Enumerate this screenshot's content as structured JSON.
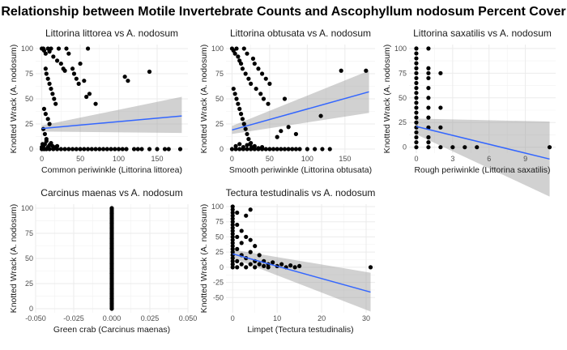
{
  "title": "Relationship between Motile Invertebrate Counts and Ascophyllum nodosum Percent Cover",
  "chart_data": [
    {
      "type": "scatter",
      "title": "Littorina littorea vs A. nodosum",
      "xlabel": "Common periwinkle (Littorina littorea)",
      "ylabel": "Knotted Wrack (A. nodosum)",
      "xlim": [
        -8,
        190
      ],
      "ylim": [
        -4,
        104
      ],
      "xticks": [
        0,
        50,
        100,
        150
      ],
      "yticks": [
        0,
        25,
        50,
        75,
        100
      ],
      "points": [
        [
          0,
          100
        ],
        [
          2,
          100
        ],
        [
          3,
          98
        ],
        [
          5,
          95
        ],
        [
          8,
          100
        ],
        [
          10,
          97
        ],
        [
          12,
          100
        ],
        [
          15,
          92
        ],
        [
          20,
          88
        ],
        [
          22,
          100
        ],
        [
          25,
          85
        ],
        [
          28,
          80
        ],
        [
          30,
          78
        ],
        [
          32,
          100
        ],
        [
          35,
          95
        ],
        [
          40,
          80
        ],
        [
          42,
          75
        ],
        [
          45,
          70
        ],
        [
          48,
          65
        ],
        [
          50,
          85
        ],
        [
          55,
          68
        ],
        [
          58,
          52
        ],
        [
          60,
          100
        ],
        [
          62,
          55
        ],
        [
          70,
          45
        ],
        [
          5,
          80
        ],
        [
          6,
          75
        ],
        [
          8,
          70
        ],
        [
          10,
          65
        ],
        [
          12,
          60
        ],
        [
          14,
          55
        ],
        [
          16,
          50
        ],
        [
          18,
          45
        ],
        [
          3,
          40
        ],
        [
          5,
          35
        ],
        [
          8,
          30
        ],
        [
          10,
          25
        ],
        [
          2,
          20
        ],
        [
          4,
          15
        ],
        [
          6,
          10
        ],
        [
          1,
          5
        ],
        [
          0,
          0
        ],
        [
          3,
          0
        ],
        [
          6,
          0
        ],
        [
          10,
          0
        ],
        [
          15,
          0
        ],
        [
          20,
          0
        ],
        [
          25,
          0
        ],
        [
          30,
          0
        ],
        [
          35,
          0
        ],
        [
          40,
          0
        ],
        [
          45,
          0
        ],
        [
          50,
          0
        ],
        [
          55,
          0
        ],
        [
          60,
          0
        ],
        [
          65,
          0
        ],
        [
          70,
          0
        ],
        [
          75,
          0
        ],
        [
          80,
          0
        ],
        [
          85,
          0
        ],
        [
          90,
          0
        ],
        [
          95,
          0
        ],
        [
          100,
          0
        ],
        [
          105,
          0
        ],
        [
          110,
          0
        ],
        [
          120,
          0
        ],
        [
          125,
          0
        ],
        [
          130,
          0
        ],
        [
          140,
          0
        ],
        [
          150,
          0
        ],
        [
          160,
          0
        ],
        [
          165,
          0
        ],
        [
          180,
          0
        ],
        [
          0,
          2
        ],
        [
          2,
          3
        ],
        [
          4,
          5
        ],
        [
          6,
          8
        ],
        [
          8,
          2
        ],
        [
          10,
          4
        ],
        [
          12,
          6
        ],
        [
          14,
          3
        ],
        [
          16,
          1
        ],
        [
          18,
          2
        ],
        [
          20,
          3
        ],
        [
          140,
          77
        ],
        [
          108,
          72
        ],
        [
          112,
          68
        ]
      ],
      "fit": {
        "x": [
          0,
          182
        ],
        "y": [
          20.5,
          33
        ],
        "se_lo": [
          17.5,
          16
        ],
        "se_hi": [
          23.5,
          52
        ]
      }
    },
    {
      "type": "scatter",
      "title": "Littorina obtusata vs A. nodosum",
      "xlabel": "Smooth periwinkle (Littorina obtusata)",
      "ylabel": "Knotted Wrack (A. nodosum)",
      "xlim": [
        -8,
        190
      ],
      "ylim": [
        -4,
        104
      ],
      "xticks": [
        0,
        50,
        100,
        150
      ],
      "yticks": [
        0,
        25,
        50,
        75,
        100
      ],
      "points": [
        [
          0,
          100
        ],
        [
          2,
          98
        ],
        [
          4,
          95
        ],
        [
          6,
          100
        ],
        [
          8,
          92
        ],
        [
          10,
          88
        ],
        [
          12,
          85
        ],
        [
          14,
          80
        ],
        [
          16,
          100
        ],
        [
          18,
          75
        ],
        [
          20,
          95
        ],
        [
          22,
          70
        ],
        [
          25,
          65
        ],
        [
          28,
          90
        ],
        [
          30,
          85
        ],
        [
          32,
          60
        ],
        [
          35,
          80
        ],
        [
          38,
          55
        ],
        [
          40,
          75
        ],
        [
          42,
          50
        ],
        [
          45,
          70
        ],
        [
          48,
          45
        ],
        [
          50,
          65
        ],
        [
          2,
          60
        ],
        [
          4,
          55
        ],
        [
          6,
          50
        ],
        [
          8,
          45
        ],
        [
          10,
          40
        ],
        [
          12,
          35
        ],
        [
          14,
          30
        ],
        [
          16,
          25
        ],
        [
          18,
          20
        ],
        [
          20,
          15
        ],
        [
          22,
          10
        ],
        [
          24,
          5
        ],
        [
          26,
          2
        ],
        [
          0,
          0
        ],
        [
          5,
          0
        ],
        [
          10,
          0
        ],
        [
          15,
          0
        ],
        [
          20,
          0
        ],
        [
          25,
          0
        ],
        [
          30,
          0
        ],
        [
          35,
          0
        ],
        [
          40,
          0
        ],
        [
          45,
          0
        ],
        [
          50,
          0
        ],
        [
          55,
          0
        ],
        [
          60,
          0
        ],
        [
          65,
          0
        ],
        [
          70,
          0
        ],
        [
          75,
          0
        ],
        [
          80,
          0
        ],
        [
          85,
          0
        ],
        [
          90,
          0
        ],
        [
          100,
          0
        ],
        [
          110,
          0
        ],
        [
          120,
          0
        ],
        [
          130,
          0
        ],
        [
          5,
          3
        ],
        [
          10,
          5
        ],
        [
          15,
          2
        ],
        [
          20,
          4
        ],
        [
          25,
          6
        ],
        [
          30,
          3
        ],
        [
          35,
          1
        ],
        [
          40,
          2
        ],
        [
          60,
          12
        ],
        [
          65,
          18
        ],
        [
          85,
          15
        ],
        [
          118,
          33
        ],
        [
          145,
          78
        ],
        [
          178,
          78
        ],
        [
          75,
          22
        ],
        [
          70,
          50
        ]
      ],
      "fit": {
        "x": [
          0,
          182
        ],
        "y": [
          19,
          57
        ],
        "se_lo": [
          15,
          36
        ],
        "se_hi": [
          23,
          78
        ]
      }
    },
    {
      "type": "scatter",
      "title": "Littorina saxatilis vs A. nodosum",
      "xlabel": "Rough periwinkle (Littorina saxatilis)",
      "ylabel": "Knotted Wrack (A. nodosum)",
      "xlim": [
        -0.6,
        11.5
      ],
      "ylim": [
        -6,
        104
      ],
      "xticks": [
        0,
        3,
        6,
        9
      ],
      "yticks": [
        0,
        25,
        50,
        75,
        100
      ],
      "points": [
        [
          0,
          100
        ],
        [
          0,
          95
        ],
        [
          0,
          90
        ],
        [
          0,
          85
        ],
        [
          0,
          80
        ],
        [
          0,
          75
        ],
        [
          0,
          70
        ],
        [
          0,
          65
        ],
        [
          0,
          60
        ],
        [
          0,
          55
        ],
        [
          0,
          50
        ],
        [
          0,
          45
        ],
        [
          0,
          40
        ],
        [
          0,
          35
        ],
        [
          0,
          30
        ],
        [
          0,
          25
        ],
        [
          0,
          20
        ],
        [
          0,
          15
        ],
        [
          0,
          10
        ],
        [
          0,
          5
        ],
        [
          0,
          0
        ],
        [
          1,
          100
        ],
        [
          1,
          80
        ],
        [
          1,
          75
        ],
        [
          1,
          70
        ],
        [
          1,
          60
        ],
        [
          1,
          50
        ],
        [
          1,
          40
        ],
        [
          1,
          30
        ],
        [
          1,
          20
        ],
        [
          1,
          10
        ],
        [
          1,
          5
        ],
        [
          1,
          0
        ],
        [
          2,
          75
        ],
        [
          2,
          40
        ],
        [
          2,
          20
        ],
        [
          2,
          0
        ],
        [
          3,
          0
        ],
        [
          4,
          0
        ],
        [
          5,
          0
        ],
        [
          11,
          0
        ]
      ],
      "fit": {
        "x": [
          0,
          11
        ],
        "y": [
          21,
          -12
        ],
        "se_lo": [
          13,
          -50
        ],
        "se_hi": [
          29,
          26
        ]
      }
    },
    {
      "type": "scatter",
      "title": "Carcinus maenas vs A. nodosum",
      "xlabel": "Green crab (Carcinus maenas)",
      "ylabel": "Knotted Wrack (A. nodosum)",
      "xlim": [
        -0.05,
        0.05
      ],
      "ylim": [
        -4,
        104
      ],
      "xticks": [
        -0.05,
        -0.025,
        0,
        0.025,
        0.05
      ],
      "xticklabels": [
        "-0.050",
        "-0.025",
        "0.000",
        "0.025",
        "0.050"
      ],
      "yticks": [
        0,
        25,
        50,
        75,
        100
      ],
      "points": [
        [
          0,
          0
        ],
        [
          0,
          5
        ],
        [
          0,
          10
        ],
        [
          0,
          15
        ],
        [
          0,
          20
        ],
        [
          0,
          25
        ],
        [
          0,
          30
        ],
        [
          0,
          35
        ],
        [
          0,
          40
        ],
        [
          0,
          45
        ],
        [
          0,
          50
        ],
        [
          0,
          55
        ],
        [
          0,
          60
        ],
        [
          0,
          65
        ],
        [
          0,
          70
        ],
        [
          0,
          75
        ],
        [
          0,
          80
        ],
        [
          0,
          85
        ],
        [
          0,
          90
        ],
        [
          0,
          95
        ],
        [
          0,
          100
        ]
      ],
      "vline": true
    },
    {
      "type": "scatter",
      "title": "Tectura testudinalis vs A. nodosum",
      "xlabel": "Limpet (Tectura testudinalis)",
      "ylabel": "Knotted Wrack (A. nodosum)",
      "xlim": [
        -1.5,
        32
      ],
      "ylim": [
        -75,
        104
      ],
      "xticks": [
        0,
        10,
        20,
        30
      ],
      "yticks": [
        -50,
        -25,
        0,
        25,
        50,
        75,
        100
      ],
      "points": [
        [
          0,
          100
        ],
        [
          0,
          90
        ],
        [
          0,
          80
        ],
        [
          0,
          70
        ],
        [
          0,
          60
        ],
        [
          0,
          50
        ],
        [
          0,
          40
        ],
        [
          0,
          30
        ],
        [
          0,
          20
        ],
        [
          0,
          10
        ],
        [
          0,
          0
        ],
        [
          0,
          95
        ],
        [
          0,
          85
        ],
        [
          0,
          75
        ],
        [
          0,
          65
        ],
        [
          0,
          55
        ],
        [
          0,
          45
        ],
        [
          0,
          35
        ],
        [
          0,
          25
        ],
        [
          0,
          15
        ],
        [
          0,
          5
        ],
        [
          1,
          90
        ],
        [
          1,
          70
        ],
        [
          1,
          50
        ],
        [
          1,
          30
        ],
        [
          1,
          10
        ],
        [
          1,
          0
        ],
        [
          2,
          60
        ],
        [
          2,
          40
        ],
        [
          2,
          20
        ],
        [
          2,
          5
        ],
        [
          3,
          85
        ],
        [
          3,
          50
        ],
        [
          3,
          15
        ],
        [
          3,
          0
        ],
        [
          4,
          95
        ],
        [
          4,
          45
        ],
        [
          4,
          25
        ],
        [
          4,
          5
        ],
        [
          5,
          35
        ],
        [
          5,
          10
        ],
        [
          5,
          0
        ],
        [
          6,
          20
        ],
        [
          6,
          5
        ],
        [
          7,
          10
        ],
        [
          7,
          2
        ],
        [
          8,
          5
        ],
        [
          8,
          0
        ],
        [
          9,
          8
        ],
        [
          10,
          2
        ],
        [
          11,
          5
        ],
        [
          12,
          0
        ],
        [
          13,
          3
        ],
        [
          14,
          0
        ],
        [
          15,
          2
        ],
        [
          31,
          0
        ]
      ],
      "fit": {
        "x": [
          0,
          31
        ],
        "y": [
          22,
          -41
        ],
        "se_lo": [
          15,
          -73
        ],
        "se_hi": [
          29,
          -9
        ]
      }
    }
  ]
}
